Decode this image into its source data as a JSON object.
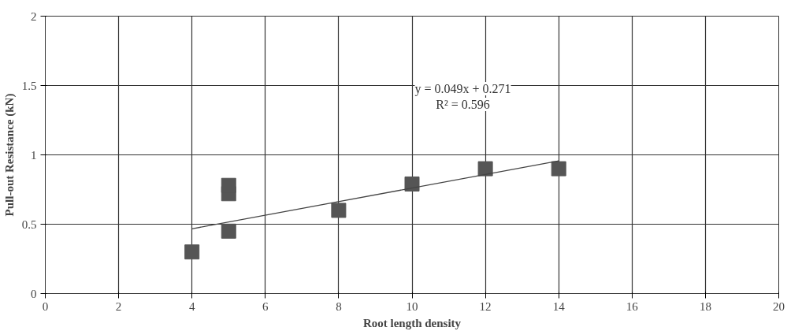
{
  "chart_data": {
    "type": "scatter",
    "xlabel": "Root length density",
    "ylabel": "Pull-out Resistance (kN)",
    "x": [
      4,
      5,
      5,
      5,
      8,
      10,
      12,
      14
    ],
    "series": [
      {
        "color": "#555555",
        "marker": "square",
        "values": [
          0.3,
          0.45,
          0.72,
          0.78,
          0.6,
          0.79,
          0.9,
          0.9
        ]
      },
      {
        "type": "line",
        "color": "#444444",
        "x": [
          4,
          14
        ],
        "values": [
          0.467,
          0.957
        ]
      }
    ],
    "annotations": [
      "y = 0.049x + 0.271\nR² = 0.596"
    ],
    "xlim": [
      0,
      20
    ],
    "ylim": [
      0,
      2
    ],
    "xticks": [
      0,
      2,
      4,
      6,
      8,
      10,
      12,
      14,
      16,
      18,
      20
    ],
    "yticks": [
      0,
      {
        "value": 0.5,
        "label": "0.5"
      },
      1,
      {
        "value": 1.5,
        "label": "1.5"
      },
      2
    ],
    "grid": true
  }
}
